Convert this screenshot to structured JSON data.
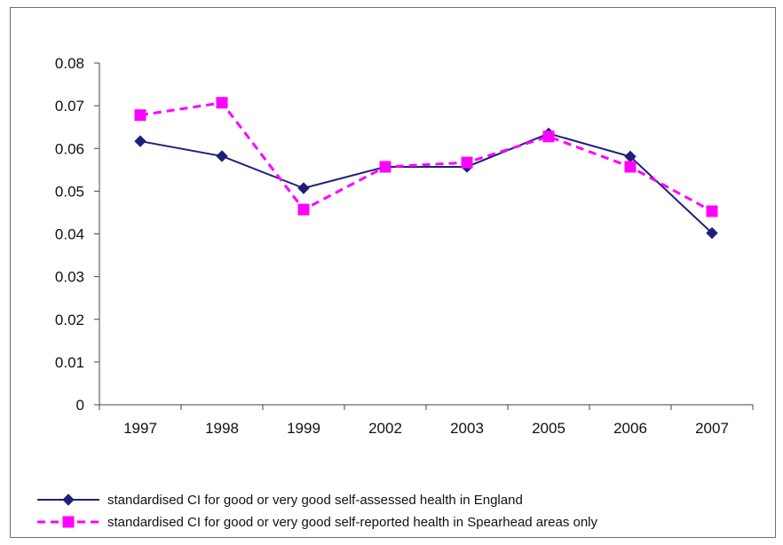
{
  "chart_data": {
    "type": "line",
    "title": "",
    "xlabel": "",
    "ylabel": "",
    "categories": [
      "1997",
      "1998",
      "1999",
      "2002",
      "2003",
      "2005",
      "2006",
      "2007"
    ],
    "ylim": [
      0,
      0.08
    ],
    "yticks": [
      "0",
      "0.01",
      "0.02",
      "0.03",
      "0.04",
      "0.05",
      "0.06",
      "0.07",
      "0.08"
    ],
    "grid": false,
    "legend_position": "bottom",
    "series": [
      {
        "name": "standardised CI for good or very good self-assessed health in England",
        "values": [
          0.0617,
          0.0582,
          0.0507,
          0.0557,
          0.0557,
          0.0635,
          0.0581,
          0.0402
        ],
        "color": "#1f1f7a",
        "line_style": "solid",
        "marker": "diamond"
      },
      {
        "name": "standardised CI for good or very good self-reported health in Spearhead areas only",
        "values": [
          0.0678,
          0.0707,
          0.0457,
          0.0557,
          0.0567,
          0.0628,
          0.0557,
          0.0453
        ],
        "color": "#ff00ff",
        "line_style": "dashed",
        "marker": "square"
      }
    ]
  }
}
